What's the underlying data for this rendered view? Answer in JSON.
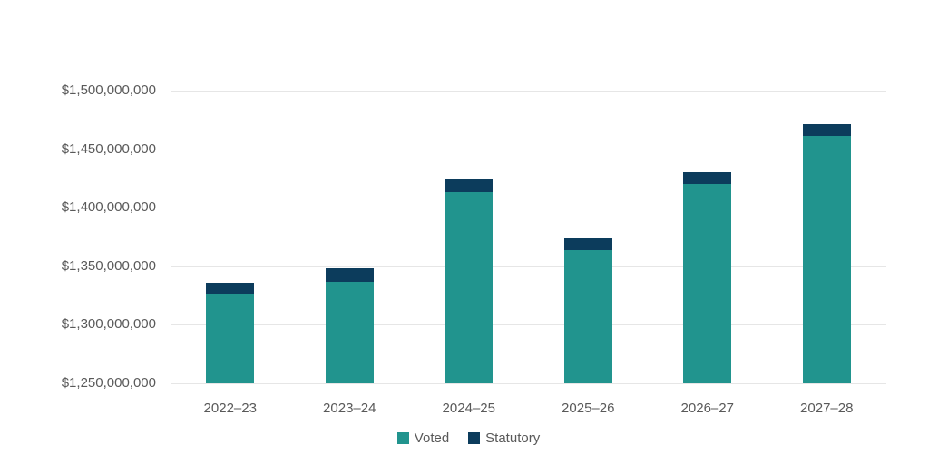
{
  "chart_data": {
    "type": "bar",
    "stacked": true,
    "title": "",
    "xlabel": "",
    "ylabel": "",
    "categories": [
      "2022–23",
      "2023–24",
      "2024–25",
      "2025–26",
      "2026–27",
      "2027–28"
    ],
    "series": [
      {
        "name": "Voted",
        "color": "#21948E",
        "values": [
          1327000000,
          1337000000,
          1413000000,
          1364000000,
          1420000000,
          1461000000
        ]
      },
      {
        "name": "Statutory",
        "color": "#0C3C5C",
        "values": [
          9000000,
          11000000,
          11000000,
          10000000,
          10000000,
          10000000
        ]
      }
    ],
    "ylim": [
      1250000000,
      1500000000
    ],
    "ytick_step": 50000000,
    "ytick_labels": [
      "$1,250,000,000",
      "$1,300,000,000",
      "$1,350,000,000",
      "$1,400,000,000",
      "$1,450,000,000",
      "$1,500,000,000"
    ],
    "grid": true,
    "legend_position": "bottom",
    "colors": {
      "grid": "#E6E6E6",
      "axis_text": "#595959",
      "background": "#FFFFFF"
    }
  }
}
